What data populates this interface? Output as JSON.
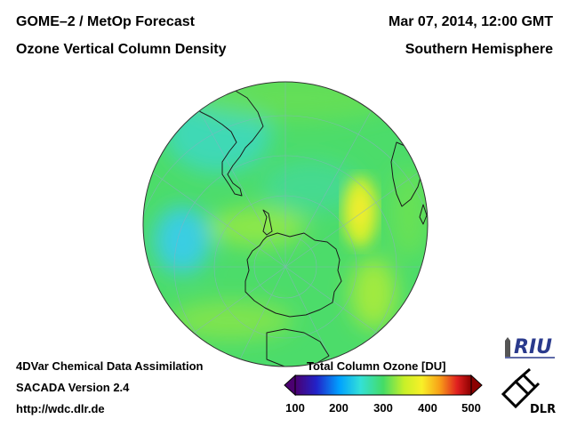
{
  "header": {
    "title_line1": "GOME–2 / MetOp Forecast",
    "title_line2": "Ozone Vertical Column Density",
    "date": "Mar 07, 2014, 12:00 GMT",
    "region": "Southern Hemisphere"
  },
  "footer": {
    "line1": "4DVar Chemical Data Assimilation",
    "line2": "SACADA Version 2.4",
    "line3": "http://wdc.dlr.de"
  },
  "colorbar": {
    "title": "Total Column Ozone [DU]",
    "ticks": [
      "100",
      "200",
      "300",
      "400",
      "500"
    ],
    "range": [
      100,
      500
    ],
    "colors": [
      "#4b0070",
      "#2222c8",
      "#00a0ff",
      "#33e0d8",
      "#44dc66",
      "#c8f028",
      "#f8f028",
      "#f8a018",
      "#e02020",
      "#8c0000"
    ]
  },
  "logos": {
    "riu": "RIU",
    "dlr": "DLR"
  },
  "map": {
    "projection": "orthographic south polar",
    "base_color": "#4cdc6a"
  }
}
